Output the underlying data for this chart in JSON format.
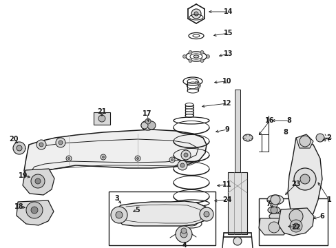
{
  "bg_color": "#ffffff",
  "line_color": "#1a1a1a",
  "fig_width": 4.89,
  "fig_height": 3.6,
  "dpi": 100,
  "xmin": 0,
  "xmax": 489,
  "ymin": 0,
  "ymax": 360
}
